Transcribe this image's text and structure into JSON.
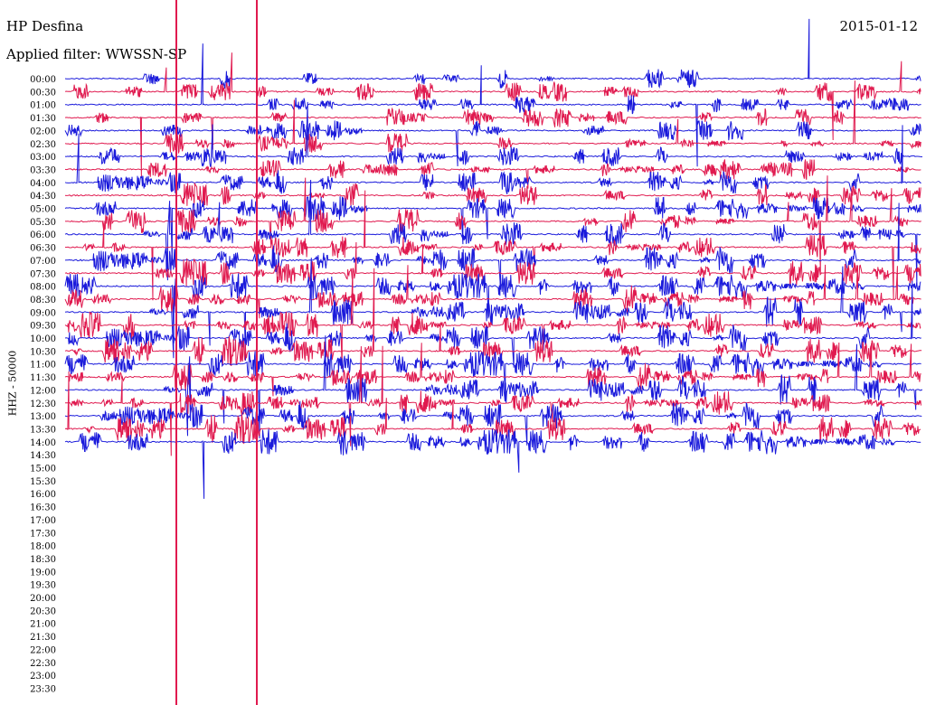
{
  "header": {
    "station": "HP Desfina",
    "date": "2015-01-12",
    "filter": "Applied filter: WWSSN-SP"
  },
  "chart_data": {
    "type": "line",
    "subtype": "helicorder",
    "ylabel": "HHZ - 50000",
    "row_labels": [
      "00:00",
      "00:30",
      "01:00",
      "01:30",
      "02:00",
      "02:30",
      "03:00",
      "03:30",
      "04:00",
      "04:30",
      "05:00",
      "05:30",
      "06:00",
      "06:30",
      "07:00",
      "07:30",
      "08:00",
      "08:30",
      "09:00",
      "09:30",
      "10:00",
      "10:30",
      "11:00",
      "11:30",
      "12:00",
      "12:30",
      "13:00",
      "13:30",
      "14:00",
      "14:30",
      "15:00",
      "15:30",
      "16:00",
      "16:30",
      "17:00",
      "17:30",
      "18:00",
      "18:30",
      "19:00",
      "19:30",
      "20:00",
      "20:30",
      "21:00",
      "21:30",
      "22:00",
      "22:30",
      "23:00",
      "23:30"
    ],
    "rows_with_signal": 29,
    "trace_colors": [
      "#1a1adb",
      "#e01a4f"
    ],
    "marker_color": "#e01a4f",
    "grid": false,
    "legend": "none"
  }
}
